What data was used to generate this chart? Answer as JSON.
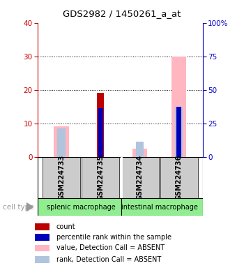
{
  "title": "GDS2982 / 1450261_a_at",
  "samples": [
    "GSM224733",
    "GSM224735",
    "GSM224734",
    "GSM224736"
  ],
  "group_labels": [
    "splenic macrophage",
    "intestinal macrophage"
  ],
  "left_yticks": [
    0,
    10,
    20,
    30,
    40
  ],
  "right_ytick_vals": [
    0,
    25,
    50,
    75,
    100
  ],
  "right_ytick_labels": [
    "0",
    "25",
    "50",
    "75",
    "100%"
  ],
  "ylim": [
    0,
    40
  ],
  "bars": {
    "value_absent": [
      9.0,
      0.0,
      2.5,
      30.0
    ],
    "rank_absent": [
      8.5,
      0.0,
      4.5,
      15.0
    ],
    "count": [
      0.0,
      19.0,
      0.0,
      0.0
    ],
    "percentile": [
      0.0,
      14.5,
      0.0,
      15.0
    ]
  },
  "colors": {
    "value_absent": "#FFB6C1",
    "rank_absent": "#B0C4DE",
    "count": "#BB0000",
    "percentile": "#0000BB",
    "sample_box_bg": "#CCCCCC",
    "group_box_bg": "#90EE90",
    "left_axis_color": "#CC0000",
    "right_axis_color": "#0000CC",
    "cell_type_color": "#999999",
    "arrow_color": "#999999"
  },
  "legend_items": [
    {
      "label": "count",
      "color": "#BB0000"
    },
    {
      "label": "percentile rank within the sample",
      "color": "#0000BB"
    },
    {
      "label": "value, Detection Call = ABSENT",
      "color": "#FFB6C1"
    },
    {
      "label": "rank, Detection Call = ABSENT",
      "color": "#B0C4DE"
    }
  ],
  "bar_positions": [
    0,
    1,
    2,
    3
  ],
  "cell_type_label": "cell type"
}
